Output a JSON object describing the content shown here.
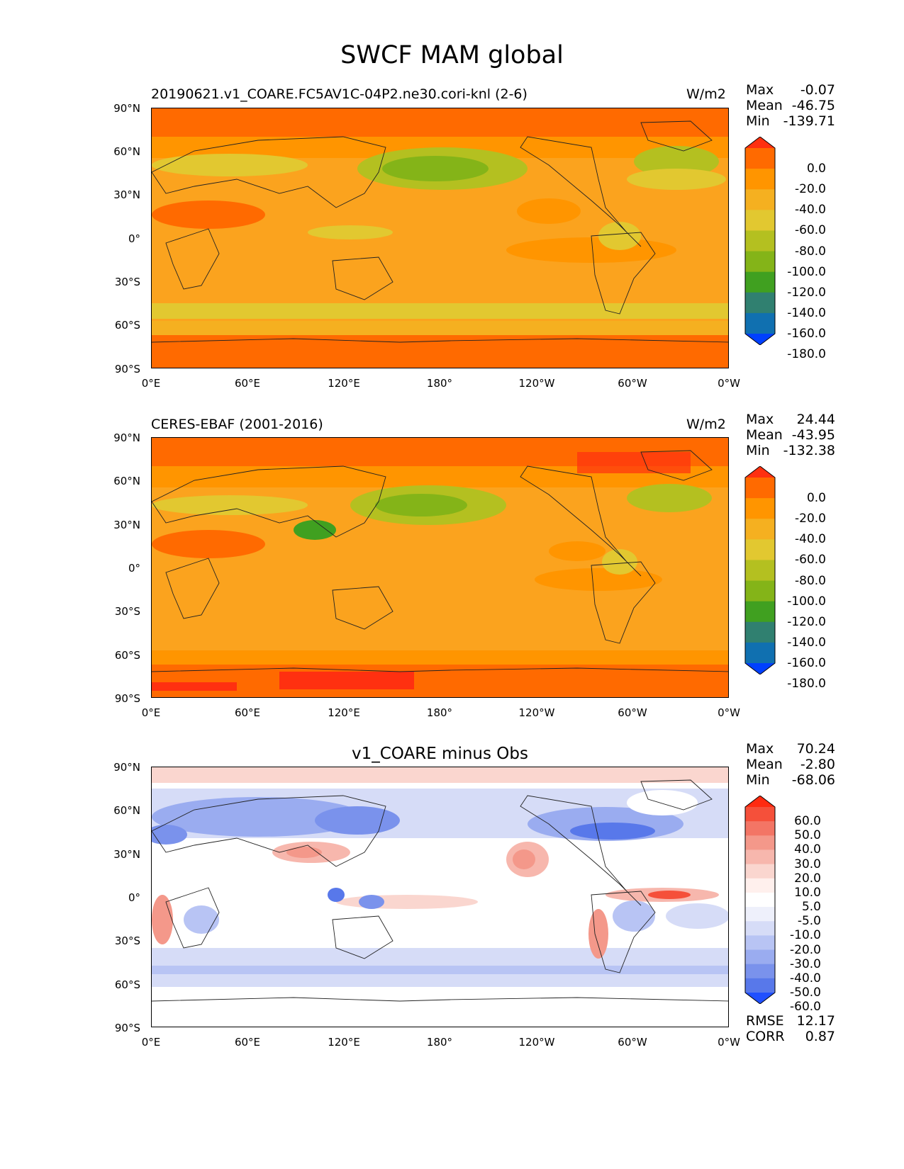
{
  "title": "SWCF MAM global",
  "lat_ticks": [
    "90°N",
    "60°N",
    "30°N",
    "0°",
    "30°S",
    "60°S",
    "90°S"
  ],
  "lon_ticks": [
    "0°E",
    "60°E",
    "120°E",
    "180°",
    "120°W",
    "60°W",
    "0°W"
  ],
  "panels": [
    {
      "title_left": "20190621.v1_COARE.FC5AV1C-04P2.ne30.cori-knl (2-6)",
      "units": "W/m2",
      "stats": [
        {
          "label": "Max",
          "value": "-0.07"
        },
        {
          "label": "Mean",
          "value": "-46.75"
        },
        {
          "label": "Min",
          "value": "-139.71"
        }
      ],
      "colorbar_labels": [
        "0.0",
        "-20.0",
        "-40.0",
        "-60.0",
        "-80.0",
        "-100.0",
        "-120.0",
        "-140.0",
        "-160.0",
        "-180.0"
      ],
      "colorbar_colors": [
        "#ff3010",
        "#ff6a00",
        "#ff9500",
        "#f5b020",
        "#e2c830",
        "#b4c020",
        "#84b418",
        "#40a020",
        "#308070",
        "#1070b0",
        "#0040ff"
      ]
    },
    {
      "title_left": "CERES-EBAF (2001-2016)",
      "units": "W/m2",
      "stats": [
        {
          "label": "Max",
          "value": "24.44"
        },
        {
          "label": "Mean",
          "value": "-43.95"
        },
        {
          "label": "Min",
          "value": "-132.38"
        }
      ],
      "colorbar_labels": [
        "0.0",
        "-20.0",
        "-40.0",
        "-60.0",
        "-80.0",
        "-100.0",
        "-120.0",
        "-140.0",
        "-160.0",
        "-180.0"
      ],
      "colorbar_colors": [
        "#ff3010",
        "#ff6a00",
        "#ff9500",
        "#f5b020",
        "#e2c830",
        "#b4c020",
        "#84b418",
        "#40a020",
        "#308070",
        "#1070b0",
        "#0040ff"
      ]
    },
    {
      "title_center": "v1_COARE minus Obs",
      "stats": [
        {
          "label": "Max",
          "value": "70.24"
        },
        {
          "label": "Mean",
          "value": "-2.80"
        },
        {
          "label": "Min",
          "value": "-68.06"
        }
      ],
      "colorbar_labels": [
        "60.0",
        "50.0",
        "40.0",
        "30.0",
        "20.0",
        "10.0",
        "5.0",
        "-5.0",
        "-10.0",
        "-20.0",
        "-30.0",
        "-40.0",
        "-50.0",
        "-60.0"
      ],
      "colorbar_colors": [
        "#ff2a10",
        "#f5503a",
        "#f37565",
        "#f4988a",
        "#f7b7ad",
        "#fad6cf",
        "#fff0ed",
        "#ffffff",
        "#eef0fb",
        "#d6dcf7",
        "#b8c4f4",
        "#9aacf0",
        "#7a92ec",
        "#5878ea",
        "#2050ff"
      ],
      "rmse": {
        "label": "RMSE",
        "value": "12.17"
      },
      "corr": {
        "label": "CORR",
        "value": "0.87"
      }
    }
  ]
}
